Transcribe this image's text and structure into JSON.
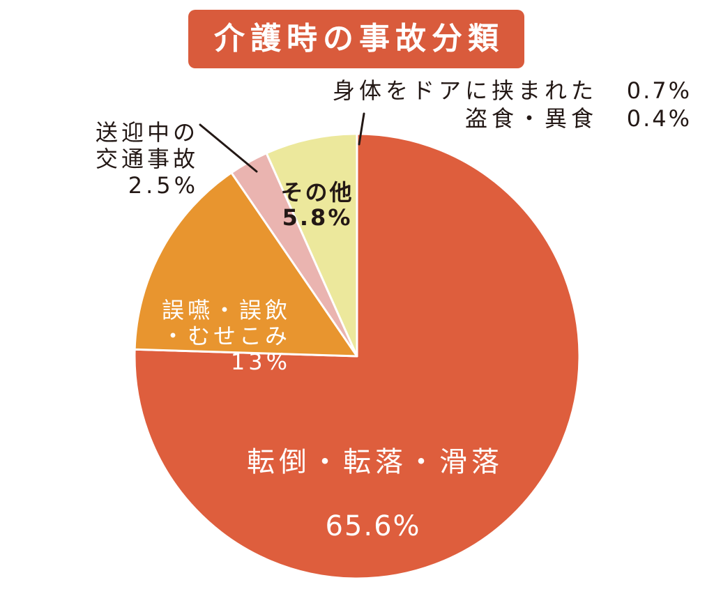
{
  "chart_data": {
    "type": "pie",
    "title": "介護時の事故分類",
    "slices": [
      {
        "label": "転倒・転落・滑落",
        "value": 65.6,
        "value_label": "65.6%",
        "color": "#DE5E3D"
      },
      {
        "label": "誤嚥・誤飲\n・むせこみ",
        "value": 13,
        "value_label": "13%",
        "color": "#E8952F"
      },
      {
        "label": "送迎中の\n交通事故",
        "value": 2.5,
        "value_label": "2.5%",
        "color": "#EAB4B0"
      },
      {
        "label": "その他",
        "value": 5.8,
        "value_label": "5.8%",
        "color": "#ECE89C"
      }
    ],
    "callouts": [
      {
        "label": "身体をドアに挟まれた",
        "value": 0.7,
        "value_label": "0.7%"
      },
      {
        "label": "盗食・異食",
        "value": 0.4,
        "value_label": "0.4%"
      }
    ]
  },
  "colors": {
    "title_background": "#D95B3C",
    "title_text": "#FFFFFF",
    "light_label_text": "#FFFFFF",
    "dark_label_text": "#231815",
    "slice_divider": "#FFFFFF"
  }
}
